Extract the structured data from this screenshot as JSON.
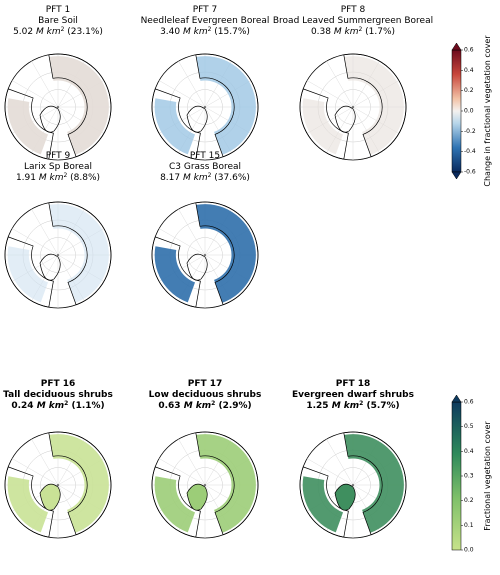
{
  "panels": [
    {
      "title": "PFT 1",
      "name": "Bare Soil",
      "value": "5.02",
      "unit": "M km",
      "power": "2",
      "share": "(23.1%)"
    },
    {
      "title": "PFT 7",
      "name": "Needleleaf Evergreen Boreal",
      "value": "3.40",
      "unit": "M km",
      "power": "2",
      "share": "(15.7%)"
    },
    {
      "title": "PFT 8",
      "name": "Broad Leaved Summergreen Boreal",
      "value": "0.38",
      "unit": "M km",
      "power": "2",
      "share": "(1.7%)"
    },
    {
      "title": "PFT 9",
      "name": "Larix Sp Boreal",
      "value": "1.91",
      "unit": "M km",
      "power": "2",
      "share": "(8.8%)"
    },
    {
      "title": "PFT 15",
      "name": "C3 Grass Boreal",
      "value": "8.17",
      "unit": "M km",
      "power": "2",
      "share": "(37.6%)"
    },
    {
      "title": "PFT 16",
      "name": "Tall deciduous shrubs",
      "value": "0.24",
      "unit": "M km",
      "power": "2",
      "share": "(1.1%)"
    },
    {
      "title": "PFT 17",
      "name": "Low deciduous shrubs",
      "value": "0.63",
      "unit": "M km",
      "power": "2",
      "share": "(2.9%)"
    },
    {
      "title": "PFT 18",
      "name": "Evergreen dwarf shrubs",
      "value": "1.25",
      "unit": "M km",
      "power": "2",
      "share": "(5.7%)"
    }
  ],
  "colorbars": [
    {
      "label": "Change in fractional vegetation cover",
      "lim": [
        -0.6,
        0.6
      ],
      "ticks": [
        0.6,
        0.4,
        0.2,
        {
          "value": 0,
          "label": "0.0"
        },
        -0.2,
        -0.4,
        -0.6
      ]
    },
    {
      "label": "Fractional vegetation cover",
      "lim": [
        0,
        0.6
      ],
      "ticks": [
        0.6,
        0.5,
        0.4,
        0.3,
        0.2,
        0.1,
        {
          "value": 0,
          "label": "0.0"
        }
      ]
    }
  ]
}
